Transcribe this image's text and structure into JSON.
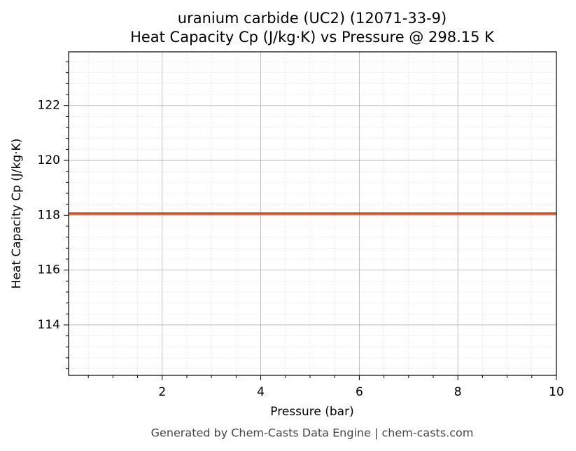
{
  "chart_data": {
    "type": "line",
    "title": "uranium carbide (UC2) (12071-33-9)",
    "subtitle": "Heat Capacity Cp (J/kg·K) vs Pressure @ 298.15 K",
    "x_label": "Pressure (bar)",
    "y_label": "Heat Capacity Cp (J/kg·K)",
    "footer": "Generated by Chem-Casts Data Engine | chem-casts.com",
    "x": [
      0.1,
      10
    ],
    "series": [
      {
        "name": "Heat Capacity Cp",
        "color": "#c0532b",
        "values": [
          118.06,
          118.06
        ]
      }
    ],
    "xlim": [
      0.1,
      10
    ],
    "xticks": [
      2,
      4,
      6,
      8,
      10
    ],
    "xminorticks": [
      0.5,
      1,
      1.5,
      2.5,
      3,
      3.5,
      4.5,
      5,
      5.5,
      6.5,
      7,
      7.5,
      8.5,
      9,
      9.5
    ],
    "ylim": [
      112.16,
      123.96
    ],
    "yticks": [
      114,
      116,
      118,
      120,
      122
    ],
    "yminorticks": [
      112.4,
      112.8,
      113.2,
      113.6,
      114.4,
      114.8,
      115.2,
      115.6,
      116.4,
      116.8,
      117.2,
      117.6,
      118.4,
      118.8,
      119.2,
      119.6,
      120.4,
      120.8,
      121.2,
      121.6,
      122.4,
      122.8,
      123.2,
      123.6
    ],
    "grid": true,
    "minor_grid": true
  }
}
